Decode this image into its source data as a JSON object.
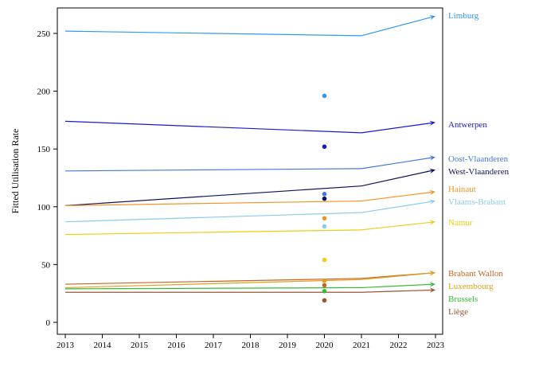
{
  "chart_data": {
    "type": "line",
    "xlabel": "",
    "ylabel": "Fitted Utilisation Rate",
    "x_ticks": [
      2013,
      2014,
      2015,
      2016,
      2017,
      2018,
      2019,
      2020,
      2021,
      2022,
      2023
    ],
    "y_ticks": [
      0,
      50,
      100,
      150,
      200,
      250
    ],
    "xlim": [
      2013,
      2023
    ],
    "ylim": [
      -5,
      272
    ],
    "grid": false,
    "legend": "labels at line ends (right)",
    "arrow_style": "line 2013 to 2021, arrow from 2021 to 2023",
    "series": [
      {
        "name": "Limburg",
        "color": "#3399ee",
        "x": [
          2013,
          2021,
          2023
        ],
        "y": [
          252,
          248,
          265
        ],
        "point_2020": 196
      },
      {
        "name": "Antwerpen",
        "color": "#1a1acc",
        "x": [
          2013,
          2021,
          2023
        ],
        "y": [
          174,
          164,
          173
        ],
        "point_2020": 152
      },
      {
        "name": "Oost-Vlaanderen",
        "color": "#4477dd",
        "x": [
          2013,
          2021,
          2023
        ],
        "y": [
          131,
          133,
          143
        ],
        "point_2020": 111
      },
      {
        "name": "West-Vlaanderen",
        "color": "#101060",
        "x": [
          2013,
          2021,
          2023
        ],
        "y": [
          101,
          118,
          132
        ],
        "point_2020": 107
      },
      {
        "name": "Hainaut",
        "color": "#f39322",
        "x": [
          2013,
          2021,
          2023
        ],
        "y": [
          101,
          105,
          113
        ],
        "point_2020": 90
      },
      {
        "name": "Vlaams-Brabant",
        "color": "#88ccee",
        "x": [
          2013,
          2021,
          2023
        ],
        "y": [
          87,
          95,
          105
        ],
        "point_2020": 83
      },
      {
        "name": "Namur",
        "color": "#f2cc10",
        "x": [
          2013,
          2021,
          2023
        ],
        "y": [
          76,
          80,
          87
        ],
        "point_2020": 54
      },
      {
        "name": "Brabant Wallon",
        "color": "#c86420",
        "x": [
          2013,
          2021,
          2023
        ],
        "y": [
          33,
          38,
          43
        ],
        "point_2020": 32
      },
      {
        "name": "Luxembourg",
        "color": "#e0a020",
        "x": [
          2013,
          2021,
          2023
        ],
        "y": [
          30,
          37,
          43
        ],
        "point_2020": 36
      },
      {
        "name": "Brussels",
        "color": "#33bb33",
        "x": [
          2013,
          2021,
          2023
        ],
        "y": [
          29,
          30,
          33
        ],
        "point_2020": 27
      },
      {
        "name": "Liège",
        "color": "#995533",
        "x": [
          2013,
          2021,
          2023
        ],
        "y": [
          26,
          26,
          28
        ],
        "point_2020": 19
      }
    ]
  }
}
